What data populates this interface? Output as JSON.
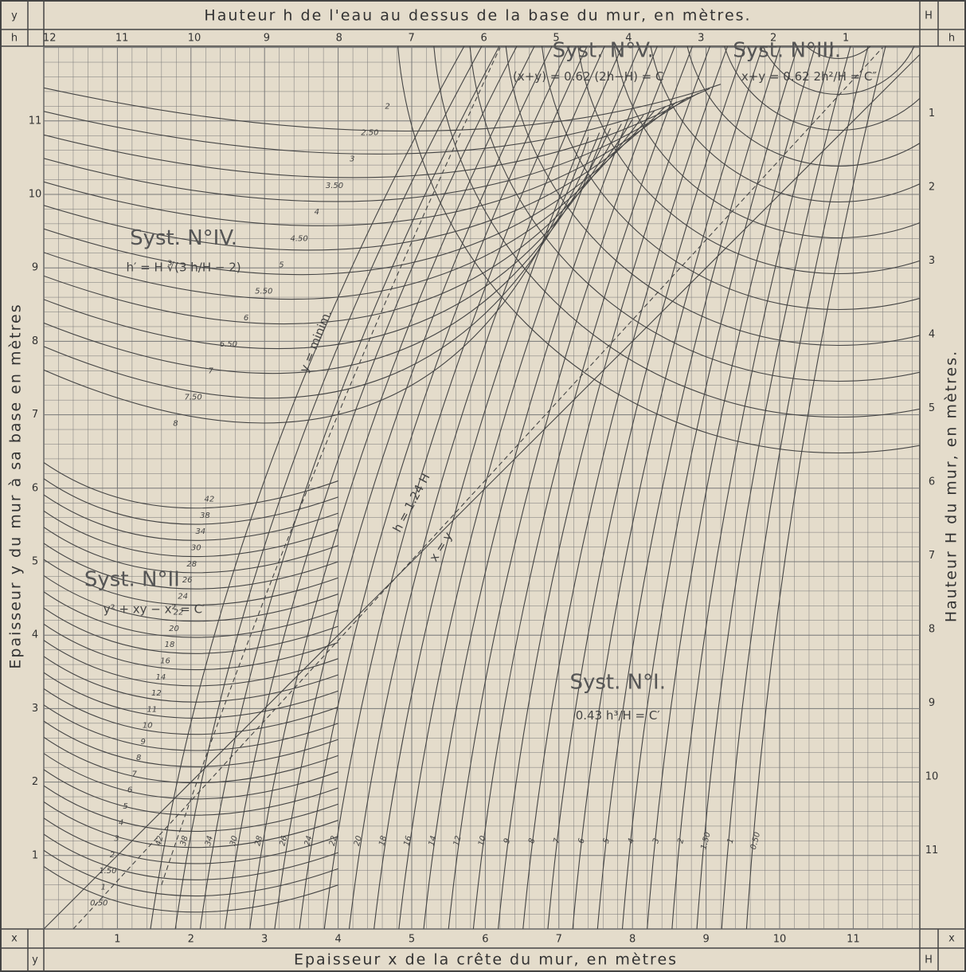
{
  "header": {
    "corner_left": "y",
    "title": "Hauteur h de l'eau au dessus de la base du mur, en mètres.",
    "corner_right": "H"
  },
  "top_axis": {
    "label_left": "h",
    "label_right": "h",
    "ticks": [
      12,
      11,
      10,
      9,
      8,
      7,
      6,
      5,
      4,
      3,
      2,
      1
    ]
  },
  "left_axis": {
    "title": "Epaisseur y du mur à sa base en mètres",
    "ticks": [
      1,
      2,
      3,
      4,
      5,
      6,
      7,
      8,
      9,
      10,
      11
    ]
  },
  "right_axis": {
    "title": "Hauteur H du mur, en mètres.",
    "ticks": [
      1,
      2,
      3,
      4,
      5,
      6,
      7,
      8,
      9,
      10,
      11
    ]
  },
  "bottom_axis": {
    "label_left": "x",
    "label_right": "x",
    "ticks": [
      1,
      2,
      3,
      4,
      5,
      6,
      7,
      8,
      9,
      10,
      11
    ]
  },
  "footer": {
    "corner_left": "y",
    "title": "Epaisseur x de la crête du mur, en mètres",
    "corner_right": "H"
  },
  "systems": [
    {
      "name": "Syst. N°V.",
      "formula": "(x+y) = 0.62 (2h−H) = C"
    },
    {
      "name": "Syst. N°III.",
      "formula": "x+y = 0.62 2h²/H = C″"
    },
    {
      "name": "Syst. N°IV.",
      "formula": "h′ = H ∛(3 h/H − 2)"
    },
    {
      "name": "Syst. N°II",
      "formula": "y² + xy − x² = C′"
    },
    {
      "name": "Syst. N°I.",
      "formula": "0.43 h³/H = C′"
    }
  ],
  "curve_labels": {
    "system_I": [
      "42",
      "38",
      "34",
      "30",
      "28",
      "26",
      "24",
      "22",
      "20",
      "18",
      "16",
      "14",
      "12",
      "10",
      "9",
      "8",
      "7",
      "6",
      "5",
      "4",
      "3",
      "2",
      "1.50",
      "1",
      "0.50"
    ],
    "system_II": [
      "0.50",
      "1",
      "1.50",
      "2",
      "3",
      "4",
      "5",
      "6",
      "7",
      "8",
      "9",
      "10",
      "11",
      "12",
      "14",
      "16",
      "18",
      "20",
      "22",
      "24",
      "26",
      "28",
      "30",
      "34",
      "38",
      "42"
    ],
    "system_IV": [
      "2",
      "2.50",
      "3",
      "3.50",
      "4",
      "4.50",
      "5",
      "5.50",
      "6",
      "6.50",
      "7",
      "7.50",
      "8"
    ]
  },
  "line_labels": [
    "y = minim.",
    "h = 1.24 H",
    "x = y"
  ]
}
